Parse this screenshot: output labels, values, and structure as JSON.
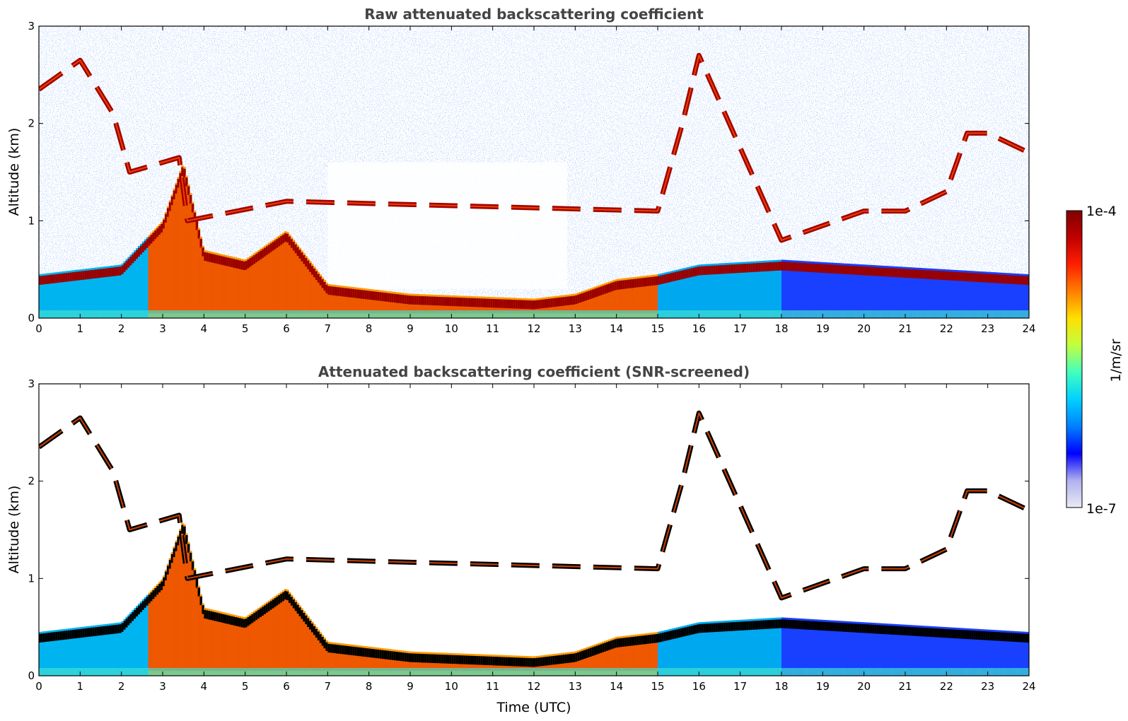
{
  "chart_data": [
    {
      "type": "heatmap",
      "id": "raw",
      "title": "Raw attenuated backscattering coefficient",
      "xlabel": "",
      "ylabel": "Altitude (km)",
      "xlim": [
        0,
        24
      ],
      "ylim": [
        0,
        3
      ],
      "xticks": [
        "0",
        "1",
        "2",
        "3",
        "4",
        "5",
        "6",
        "7",
        "8",
        "9",
        "10",
        "11",
        "12",
        "13",
        "14",
        "15",
        "16",
        "17",
        "18",
        "19",
        "20",
        "21",
        "22",
        "23",
        "24"
      ],
      "yticks": [
        "0",
        "1",
        "2",
        "3"
      ],
      "screened": false,
      "layers": {
        "surface_aerosol_top_km": [
          [
            0,
            0.45
          ],
          [
            2,
            0.55
          ],
          [
            3,
            1.0
          ],
          [
            3.5,
            1.6
          ],
          [
            4,
            0.7
          ],
          [
            5,
            0.6
          ],
          [
            6,
            0.9
          ],
          [
            7,
            0.35
          ],
          [
            9,
            0.25
          ],
          [
            12,
            0.2
          ],
          [
            13,
            0.25
          ],
          [
            14,
            0.4
          ],
          [
            15,
            0.45
          ],
          [
            16,
            0.55
          ],
          [
            18,
            0.6
          ],
          [
            24,
            0.45
          ]
        ],
        "cloud_layer_km": [
          [
            0,
            2.35
          ],
          [
            1,
            2.65
          ],
          [
            1.8,
            2.1
          ],
          [
            2.2,
            1.5
          ],
          [
            3.4,
            1.65
          ],
          [
            3.6,
            1.0
          ],
          [
            6,
            1.2
          ],
          [
            15,
            1.1
          ],
          [
            15.6,
            2.0
          ],
          [
            16,
            2.7
          ],
          [
            18,
            0.8
          ],
          [
            19,
            0.95
          ],
          [
            20,
            1.1
          ],
          [
            21,
            1.1
          ],
          [
            22,
            1.3
          ],
          [
            22.5,
            1.9
          ],
          [
            23,
            1.9
          ],
          [
            24,
            1.7
          ]
        ]
      }
    },
    {
      "type": "heatmap",
      "id": "screened",
      "title": "Attenuated backscattering coefficient (SNR-screened)",
      "xlabel": "Time (UTC)",
      "ylabel": "Altitude (km)",
      "xlim": [
        0,
        24
      ],
      "ylim": [
        0,
        3
      ],
      "xticks": [
        "0",
        "1",
        "2",
        "3",
        "4",
        "5",
        "6",
        "7",
        "8",
        "9",
        "10",
        "11",
        "12",
        "13",
        "14",
        "15",
        "16",
        "17",
        "18",
        "19",
        "20",
        "21",
        "22",
        "23",
        "24"
      ],
      "yticks": [
        "0",
        "1",
        "2",
        "3"
      ],
      "screened": true
    }
  ],
  "colorbar": {
    "label": "1/m/sr",
    "max_label": "1e-4",
    "min_label": "1e-7",
    "stops": [
      "#eaeaf6",
      "#b0b0ee",
      "#0000ff",
      "#0080ff",
      "#00d0ff",
      "#40ffc0",
      "#c0ff40",
      "#ffe000",
      "#ff8000",
      "#ff2000",
      "#c00000",
      "#800000"
    ]
  }
}
